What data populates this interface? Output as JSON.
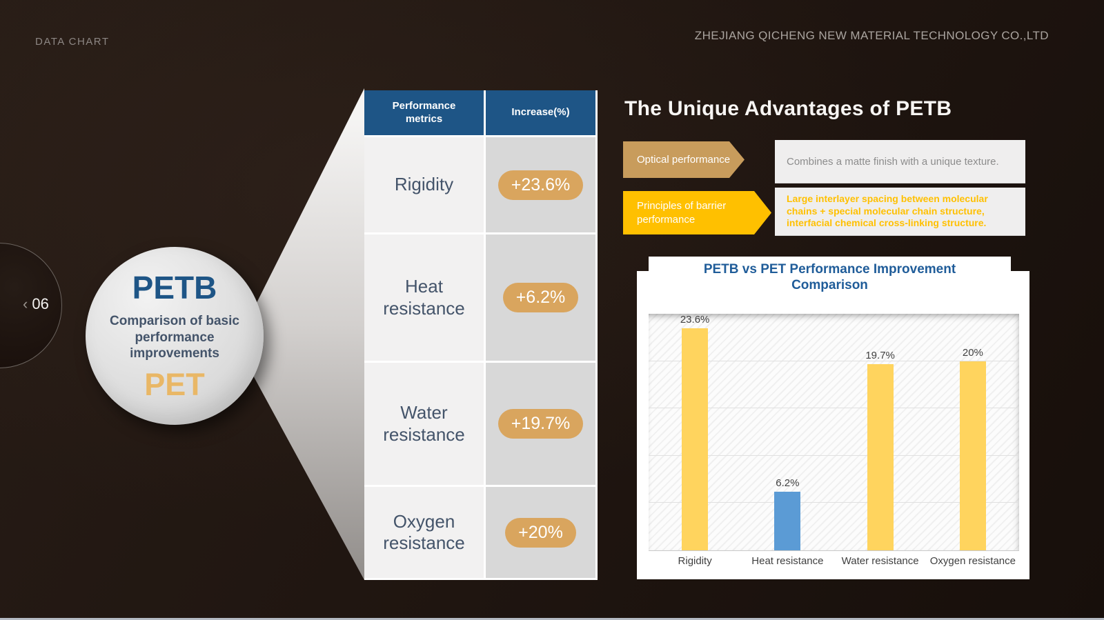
{
  "header": {
    "tag": "DATA CHART",
    "company": "ZHEJIANG QICHENG NEW MATERIAL TECHNOLOGY  CO.,LTD"
  },
  "nav": {
    "chevron": "‹",
    "page_number": "06"
  },
  "hub": {
    "primary": "PETB",
    "caption": "Comparison of basic performance improvements",
    "secondary": "PET"
  },
  "table": {
    "headers": [
      "Performance metrics",
      "Increase(%)"
    ],
    "rows": [
      {
        "metric": "Rigidity",
        "increase": "+23.6%"
      },
      {
        "metric": "Heat resistance",
        "increase": "+6.2%"
      },
      {
        "metric": "Water resistance",
        "increase": "+19.7%"
      },
      {
        "metric": "Oxygen resistance",
        "increase": "+20%"
      }
    ]
  },
  "advantages": {
    "title": "The Unique Advantages of PETB",
    "items": [
      {
        "label": "Optical performance",
        "text": "Combines a matte finish with a unique texture."
      },
      {
        "label": "Principles of barrier performance",
        "text": "Large interlayer spacing between molecular chains + special molecular chain structure, interfacial chemical cross-linking structure."
      }
    ]
  },
  "chart_data": {
    "type": "bar",
    "title": "PETB vs PET Performance Improvement Comparison",
    "categories": [
      "Rigidity",
      "Heat resistance",
      "Water resistance",
      "Oxygen resistance"
    ],
    "values": [
      23.6,
      6.2,
      19.7,
      20
    ],
    "value_labels": [
      "23.6%",
      "6.2%",
      "19.7%",
      "20%"
    ],
    "bar_colors": [
      "#FFD45E",
      "#5B9BD5",
      "#FFD45E",
      "#FFD45E"
    ],
    "xlabel": "",
    "ylabel": "",
    "ylim": [
      0,
      25
    ],
    "gridline_step": 5,
    "grid": true,
    "legend": "none",
    "background_pattern": "diagonal-hatch"
  },
  "colors": {
    "tan_arrow": "#C89C5C",
    "tan_pill": "#D9A55E",
    "yellow": "#FFC000",
    "table_header_blue": "#1E5586",
    "chart_title_blue": "#1F5C99",
    "bar_yellow": "#FFD45E",
    "bar_blue": "#5B9BD5",
    "slate_text": "#44546A",
    "pet_gold": "#E9B766"
  }
}
